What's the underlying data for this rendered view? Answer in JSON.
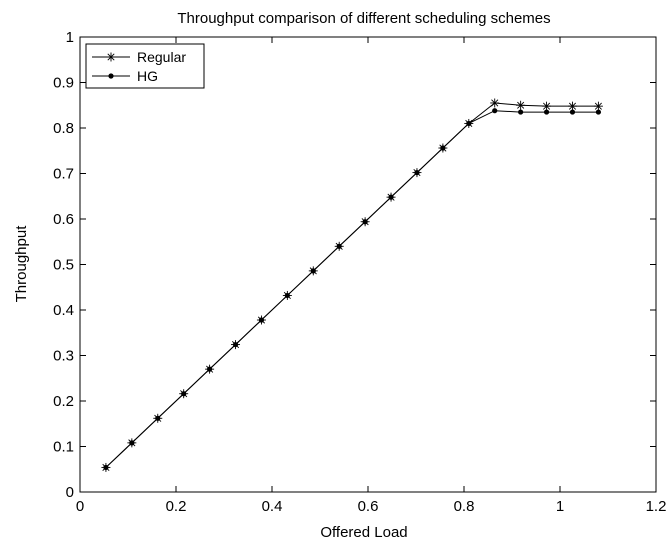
{
  "chart_data": {
    "type": "line",
    "title": "Throughput comparison of different scheduling schemes",
    "xlabel": "Offered Load",
    "ylabel": "Throughput",
    "xlim": [
      0,
      1.2
    ],
    "ylim": [
      0,
      1
    ],
    "xticks": [
      0,
      0.2,
      0.4,
      0.6,
      0.8,
      1,
      1.2
    ],
    "xtick_labels": [
      "0",
      "0.2",
      "0.4",
      "0.6",
      "0.8",
      "1",
      "1.2"
    ],
    "yticks": [
      0,
      0.1,
      0.2,
      0.3,
      0.4,
      0.5,
      0.6,
      0.7,
      0.8,
      0.9,
      1
    ],
    "ytick_labels": [
      "0",
      "0.1",
      "0.2",
      "0.3",
      "0.4",
      "0.5",
      "0.6",
      "0.7",
      "0.8",
      "0.9",
      "1"
    ],
    "grid": false,
    "legend_position": "top-left",
    "x": [
      0.054,
      0.108,
      0.162,
      0.216,
      0.27,
      0.324,
      0.378,
      0.432,
      0.486,
      0.54,
      0.594,
      0.648,
      0.702,
      0.756,
      0.81,
      0.864,
      0.918,
      0.972,
      1.026,
      1.08
    ],
    "series": [
      {
        "name": "Regular",
        "marker": "asterisk",
        "color": "#000000",
        "values": [
          0.054,
          0.108,
          0.162,
          0.216,
          0.27,
          0.324,
          0.378,
          0.432,
          0.486,
          0.54,
          0.594,
          0.648,
          0.702,
          0.756,
          0.81,
          0.855,
          0.85,
          0.848,
          0.848,
          0.848
        ]
      },
      {
        "name": "HG",
        "marker": "dot",
        "color": "#000000",
        "values": [
          0.054,
          0.108,
          0.162,
          0.216,
          0.27,
          0.324,
          0.378,
          0.432,
          0.486,
          0.54,
          0.594,
          0.648,
          0.702,
          0.756,
          0.81,
          0.838,
          0.835,
          0.835,
          0.835,
          0.835
        ]
      }
    ]
  }
}
